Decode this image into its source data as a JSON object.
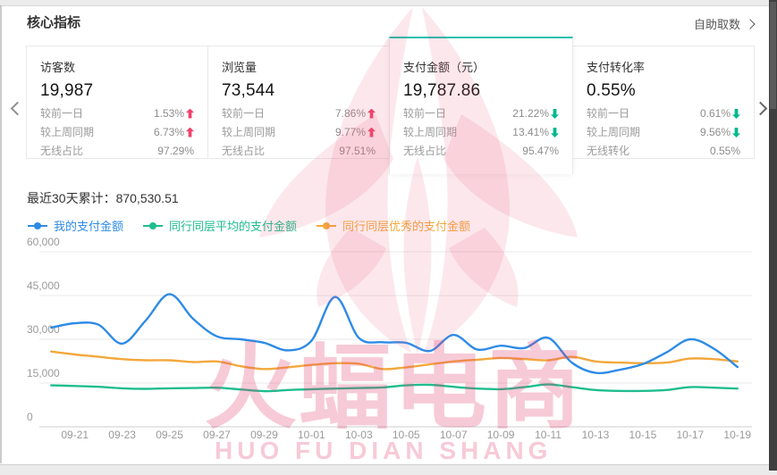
{
  "header": {
    "title": "核心指标",
    "action_label": "自助取数"
  },
  "cards": [
    {
      "title": "访客数",
      "value": "19,987",
      "selected": false,
      "rows": [
        {
          "label": "较前一日",
          "value": "1.53%",
          "dir": "up"
        },
        {
          "label": "较上周同期",
          "value": "6.73%",
          "dir": "up"
        },
        {
          "label": "无线占比",
          "value": "97.29%",
          "dir": "none"
        }
      ]
    },
    {
      "title": "浏览量",
      "value": "73,544",
      "selected": false,
      "rows": [
        {
          "label": "较前一日",
          "value": "7.86%",
          "dir": "up"
        },
        {
          "label": "较上周同期",
          "value": "9.77%",
          "dir": "up"
        },
        {
          "label": "无线占比",
          "value": "97.51%",
          "dir": "none"
        }
      ]
    },
    {
      "title": "支付金额（元）",
      "value": "19,787.86",
      "selected": true,
      "rows": [
        {
          "label": "较前一日",
          "value": "21.22%",
          "dir": "down"
        },
        {
          "label": "较上周同期",
          "value": "13.41%",
          "dir": "down"
        },
        {
          "label": "无线占比",
          "value": "95.47%",
          "dir": "none"
        }
      ]
    },
    {
      "title": "支付转化率",
      "value": "0.55%",
      "selected": false,
      "rows": [
        {
          "label": "较前一日",
          "value": "0.61%",
          "dir": "down"
        },
        {
          "label": "较上周同期",
          "value": "9.56%",
          "dir": "down"
        },
        {
          "label": "无线转化",
          "value": "0.55%",
          "dir": "none"
        }
      ]
    }
  ],
  "summary": {
    "label": "最近30天累计：870,530.51"
  },
  "watermark": {
    "cn": "火蝠电商",
    "en": "HUO FU DIAN SHANG"
  },
  "colors": {
    "up_arrow": "#f0436a",
    "down_arrow": "#00b98d",
    "selected_tab_border": "#1ec1ac",
    "series_mine": "#2e8be6",
    "series_peer_avg": "#1fbd8f",
    "series_peer_top": "#f3a83c",
    "grid_line": "#eaeaea",
    "axis_text": "#9a9a9a"
  },
  "chart_data": {
    "type": "line",
    "smooth": true,
    "grid": true,
    "legend_position": "top-left",
    "title": "最近30天累计：870,530.51",
    "total_30d": "870,530.51",
    "ylim": [
      0,
      60000
    ],
    "yticks": [
      0,
      15000,
      30000,
      45000,
      60000
    ],
    "x": [
      "09-20",
      "09-21",
      "09-22",
      "09-23",
      "09-24",
      "09-25",
      "09-26",
      "09-27",
      "09-28",
      "09-29",
      "09-30",
      "10-01",
      "10-02",
      "10-03",
      "10-04",
      "10-05",
      "10-06",
      "10-07",
      "10-08",
      "10-09",
      "10-10",
      "10-11",
      "10-12",
      "10-13",
      "10-14",
      "10-15",
      "10-16",
      "10-17",
      "10-18",
      "10-19"
    ],
    "x_tick_labels": [
      "09-21",
      "09-23",
      "09-25",
      "09-27",
      "09-29",
      "10-01",
      "10-03",
      "10-05",
      "10-07",
      "10-09",
      "10-11",
      "10-13",
      "10-15",
      "10-17",
      "10-19"
    ],
    "series": [
      {
        "name": "我的支付金额",
        "color": "#2e8be6",
        "values": [
          34000,
          35500,
          35000,
          28500,
          36500,
          45500,
          37000,
          31000,
          30000,
          28800,
          26200,
          29500,
          44500,
          30500,
          29000,
          28800,
          26000,
          31500,
          26500,
          27800,
          27000,
          30500,
          22000,
          18500,
          19500,
          21500,
          25500,
          30000,
          26800,
          20500
        ]
      },
      {
        "name": "同行同层平均的支付金额",
        "color": "#1fbd8f",
        "values": [
          14200,
          14000,
          13700,
          13200,
          13000,
          13200,
          13300,
          13400,
          12800,
          12200,
          12600,
          12900,
          13100,
          13300,
          13500,
          14200,
          14400,
          13700,
          13100,
          12900,
          13600,
          14500,
          13600,
          12600,
          12300,
          12300,
          12600,
          13600,
          13400,
          13100
        ]
      },
      {
        "name": "同行同层优秀的支付金额",
        "color": "#f3a83c",
        "values": [
          25800,
          24800,
          24000,
          23200,
          22800,
          22800,
          22200,
          22400,
          20800,
          19800,
          20400,
          21200,
          21800,
          21600,
          19800,
          20400,
          21400,
          22400,
          23000,
          23600,
          23200,
          22800,
          24000,
          22400,
          22000,
          21800,
          22000,
          23400,
          23200,
          22400
        ]
      }
    ]
  }
}
